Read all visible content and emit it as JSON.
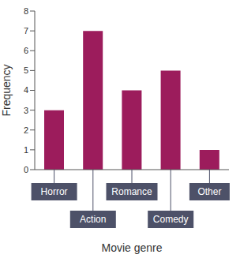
{
  "chart_data": {
    "type": "bar",
    "categories": [
      "Horror",
      "Action",
      "Romance",
      "Comedy",
      "Other"
    ],
    "values": [
      3,
      7,
      4,
      5,
      1
    ],
    "color": "#9c1c5c",
    "x_label": "Movie genre",
    "y_label": "Frequency",
    "ylim": [
      0,
      8
    ],
    "yticks": [
      0,
      1,
      2,
      3,
      4,
      5,
      6,
      7,
      8
    ],
    "grid": false
  }
}
